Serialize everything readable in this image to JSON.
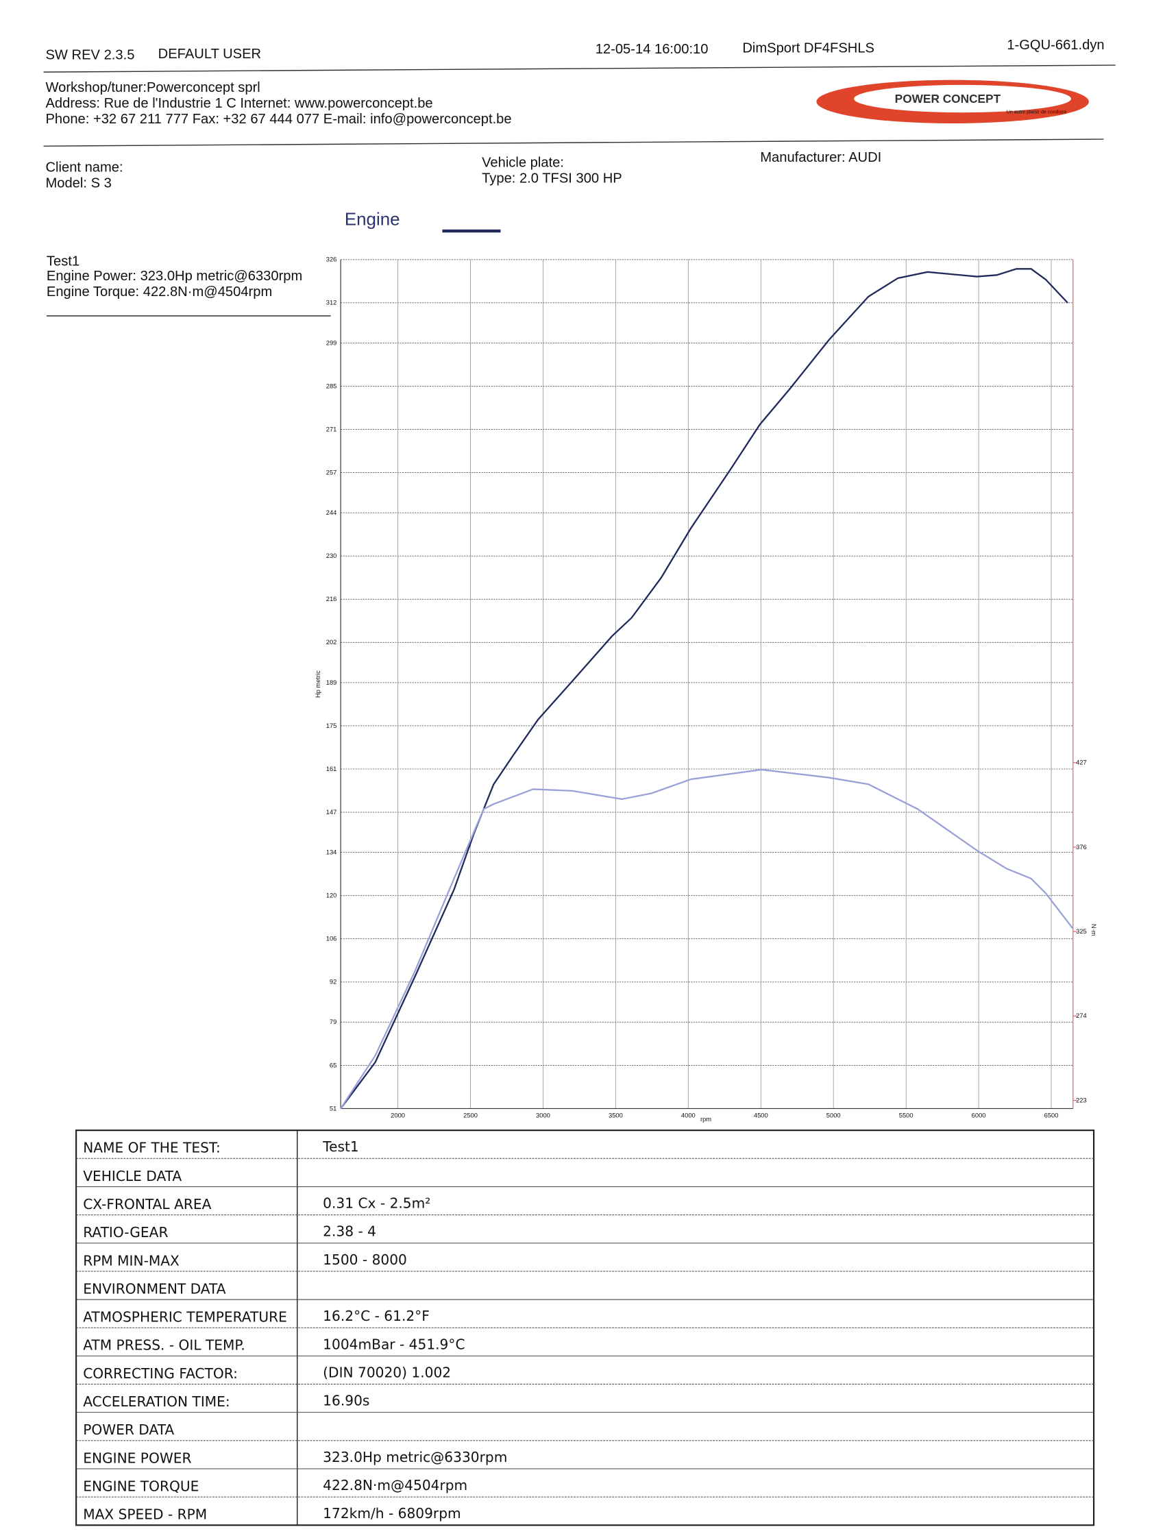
{
  "header": {
    "software": "SW REV 2.3.5",
    "user": "DEFAULT USER",
    "datetime": "12-05-14 16:00:10",
    "device": "DimSport DF4FSHLS",
    "file": "1-GQU-661.dyn"
  },
  "workshop": {
    "line1": "Workshop/tuner:Powerconcept sprl",
    "line2": "Address: Rue de l'Industrie 1 C Internet: www.powerconcept.be",
    "line3": "Phone: +32 67 211 777 Fax: +32 67 444 077 E-mail: info@powerconcept.be"
  },
  "logo": {
    "name": "POWER CONCEPT",
    "slogan": "Un autre plaisir de conduire"
  },
  "client": {
    "name": "Client name:",
    "model": "Model: S 3",
    "plate": "Vehicle plate:",
    "type": "Type: 2.0 TFSI 300 HP",
    "manufacturer": "Manufacturer: AUDI"
  },
  "test": {
    "name": "Test1",
    "power": "Engine Power: 323.0Hp metric@6330rpm",
    "torque": "Engine Torque: 422.8N·m@4504rpm"
  },
  "chart_data": {
    "type": "line",
    "xlabel": "rpm",
    "ylabel": "Hp metric",
    "y2label": "N·m",
    "xlim": [
      1606,
      6650
    ],
    "xticks": [
      2000,
      2500,
      3000,
      3500,
      4000,
      4500,
      5000,
      5500,
      6000,
      6500
    ],
    "ylim": [
      51,
      326
    ],
    "yticks": [
      51,
      65,
      79,
      92,
      106,
      120,
      134,
      147,
      161,
      175,
      189,
      202,
      216,
      230,
      244,
      257,
      271,
      285,
      299,
      312,
      326
    ],
    "y2lim": [
      218,
      731
    ],
    "y2ticks": [
      223,
      274,
      325,
      376,
      427
    ],
    "grid": true,
    "series": [
      {
        "name": "Engine",
        "color": "#1f2a5a",
        "x": [
          1606,
          1844,
          2115,
          2387,
          2523,
          2659,
          2795,
          2965,
          3202,
          3474,
          3610,
          3814,
          4018,
          4290,
          4493,
          4697,
          4969,
          5240,
          5444,
          5648,
          5988,
          6124,
          6260,
          6361,
          6463,
          6613
        ],
        "values": [
          51,
          66,
          93.5,
          122,
          140,
          156,
          165.5,
          177,
          189.5,
          204,
          210,
          223,
          239,
          258,
          272.6,
          284,
          300,
          314,
          320,
          322,
          320.5,
          321,
          323,
          323,
          319.5,
          312
        ]
      },
      {
        "color": "#9aa0d8",
        "axis": "y2",
        "x": [
          1606,
          1844,
          2115,
          2387,
          2591,
          2659,
          2931,
          3202,
          3542,
          3746,
          4018,
          4504,
          4969,
          5240,
          5580,
          5988,
          6192,
          6361,
          6463,
          6647
        ],
        "values": [
          218,
          250,
          300.5,
          357,
          399,
          402,
          411,
          410,
          405,
          408.5,
          417,
          422.8,
          418,
          414,
          399,
          374,
          363,
          357,
          348,
          327
        ]
      }
    ]
  },
  "table": {
    "rows": [
      {
        "label": "NAME OF THE TEST:",
        "value": "Test1"
      },
      {
        "label": "VEHICLE DATA"
      },
      {
        "label": "CX-FRONTAL AREA",
        "value": "0.31 Cx - 2.5m²"
      },
      {
        "label": "RATIO-GEAR",
        "value": "2.38 - 4"
      },
      {
        "label": "RPM MIN-MAX",
        "value": "1500 - 8000"
      },
      {
        "label": "ENVIRONMENT DATA"
      },
      {
        "label": "ATMOSPHERIC TEMPERATURE",
        "value": "16.2°C - 61.2°F"
      },
      {
        "label": "ATM PRESS. - OIL TEMP.",
        "value": "1004mBar - 451.9°C"
      },
      {
        "label": "CORRECTING FACTOR:",
        "value": "(DIN 70020) 1.002"
      },
      {
        "label": "ACCELERATION TIME:",
        "value": "16.90s"
      },
      {
        "label": "POWER DATA"
      },
      {
        "label": "ENGINE POWER",
        "value": "323.0Hp metric@6330rpm"
      },
      {
        "label": "ENGINE TORQUE",
        "value": "422.8N·m@4504rpm"
      },
      {
        "label": "MAX SPEED - RPM",
        "value": "172km/h - 6809rpm"
      }
    ]
  }
}
